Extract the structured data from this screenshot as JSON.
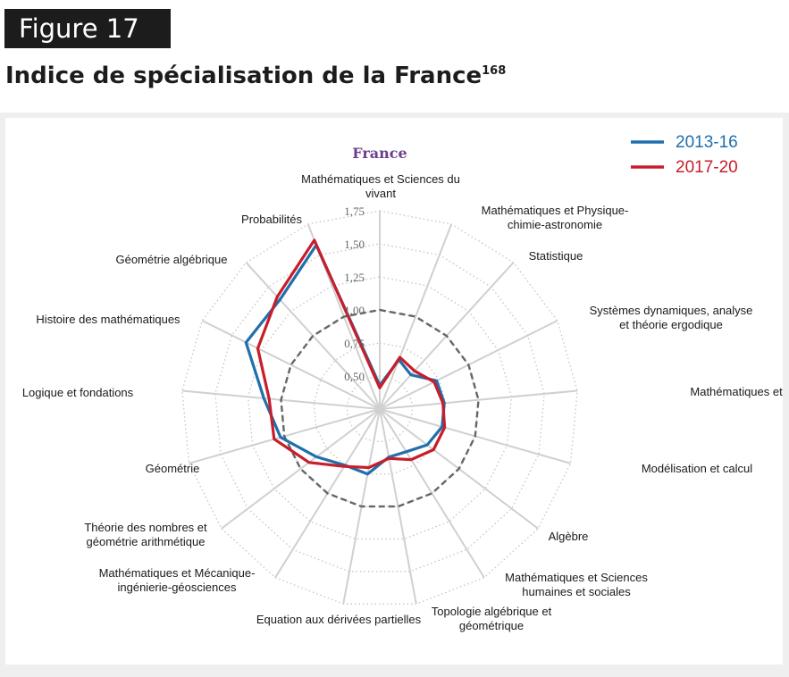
{
  "header": {
    "figure_label": "Figure 17",
    "title": "Indice de spécialisation de la France",
    "title_sup": "168"
  },
  "chart_data": {
    "type": "radar",
    "title": "France",
    "axes": [
      [
        "Mathématiques et Sciences du",
        "vivant"
      ],
      [
        "Mathématiques et Physique-",
        "chimie-astronomie"
      ],
      [
        "Statistique"
      ],
      [
        "Systèmes dynamiques, analyse",
        "et théorie ergodique"
      ],
      [
        "Mathématiques et Informatique"
      ],
      [
        "Modélisation et calcul"
      ],
      [
        "Algèbre"
      ],
      [
        "Mathématiques et Sciences",
        "humaines et sociales"
      ],
      [
        "Topologie algébrique et",
        "géométrique"
      ],
      [
        "Equation aux dérivées partielles"
      ],
      [
        "Mathématiques et Mécanique-",
        "ingénierie-géosciences"
      ],
      [
        "Théorie des nombres et",
        "géométrie arithmétique"
      ],
      [
        "Géométrie"
      ],
      [
        "Logique et fondations"
      ],
      [
        "Histoire des mathématiques"
      ],
      [
        "Géométrie algébrique"
      ],
      [
        "Probabilités"
      ]
    ],
    "ticks": [
      {
        "value": 0.5,
        "label": "0,50"
      },
      {
        "value": 0.75,
        "label": "0,75"
      },
      {
        "value": 1.0,
        "label": "1,00"
      },
      {
        "value": 1.25,
        "label": "1,25"
      },
      {
        "value": 1.5,
        "label": "1,50"
      },
      {
        "value": 1.75,
        "label": "1,75"
      }
    ],
    "range": [
      0.25,
      1.75
    ],
    "reference_value": 1.0,
    "series": [
      {
        "name": "2013-16",
        "color": "#1f6fad",
        "values": [
          0.43,
          0.65,
          0.6,
          0.73,
          0.74,
          0.74,
          0.7,
          0.63,
          0.62,
          0.75,
          0.75,
          0.85,
          1.03,
          1.13,
          1.38,
          1.37,
          1.58
        ]
      },
      {
        "name": "2017-20",
        "color": "#c81d2a",
        "values": [
          0.41,
          0.67,
          0.64,
          0.71,
          0.73,
          0.76,
          0.76,
          0.7,
          0.63,
          0.7,
          0.76,
          0.92,
          1.08,
          1.09,
          1.28,
          1.4,
          1.62
        ]
      }
    ],
    "legend_position": "top-right",
    "grid": true
  }
}
